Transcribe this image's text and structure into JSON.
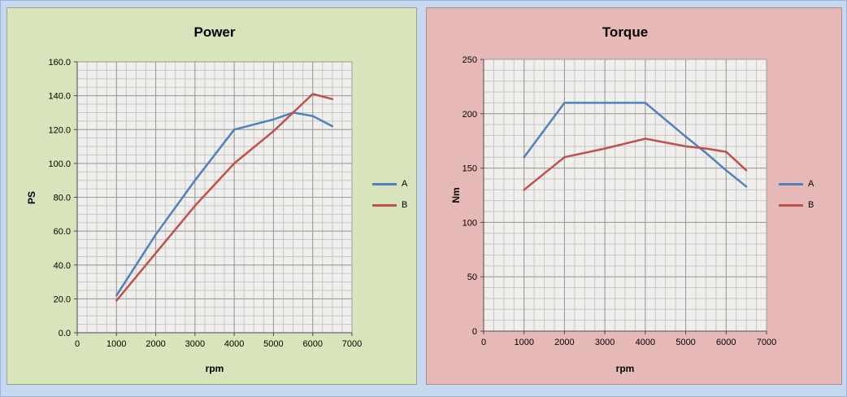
{
  "page": {
    "background": "#c6d9f0"
  },
  "chart_data": [
    {
      "id": "power",
      "type": "line",
      "title": "Power",
      "xlabel": "rpm",
      "ylabel": "PS",
      "panel_bg": "#d7e4bc",
      "panel_border": "#9aa877",
      "plot_bg": "#f0efed",
      "grid": true,
      "legend_position": "right",
      "x": [
        1000,
        2000,
        3000,
        4000,
        5000,
        5500,
        6000,
        6500
      ],
      "series": [
        {
          "name": "A",
          "color": "#4f81bd",
          "values": [
            22,
            58,
            90,
            120,
            126,
            130,
            128,
            122
          ]
        },
        {
          "name": "B",
          "color": "#c0504d",
          "values": [
            19,
            47,
            75,
            100,
            119,
            130,
            141,
            138
          ]
        }
      ],
      "xlim": [
        0,
        7000
      ],
      "ylim": [
        0,
        160
      ],
      "x_tick_step": 1000,
      "x_minor_step": 250,
      "y_tick_step": 20,
      "y_minor_step": 5,
      "y_tick_decimals": 1
    },
    {
      "id": "torque",
      "type": "line",
      "title": "Torque",
      "xlabel": "rpm",
      "ylabel": "Nm",
      "panel_bg": "#e6b9b7",
      "panel_border": "#b08a88",
      "plot_bg": "#f0efed",
      "grid": true,
      "legend_position": "right",
      "x": [
        1000,
        2000,
        3000,
        4000,
        5000,
        5500,
        6000,
        6500
      ],
      "series": [
        {
          "name": "A",
          "color": "#4f81bd",
          "values": [
            160,
            210,
            210,
            210,
            179,
            164,
            148,
            133
          ]
        },
        {
          "name": "B",
          "color": "#c0504d",
          "values": [
            130,
            160,
            168,
            177,
            170,
            168,
            165,
            148
          ]
        }
      ],
      "xlim": [
        0,
        7000
      ],
      "ylim": [
        0,
        250
      ],
      "x_tick_step": 1000,
      "x_minor_step": 250,
      "y_tick_step": 50,
      "y_minor_step": 10,
      "y_tick_decimals": 0
    }
  ]
}
